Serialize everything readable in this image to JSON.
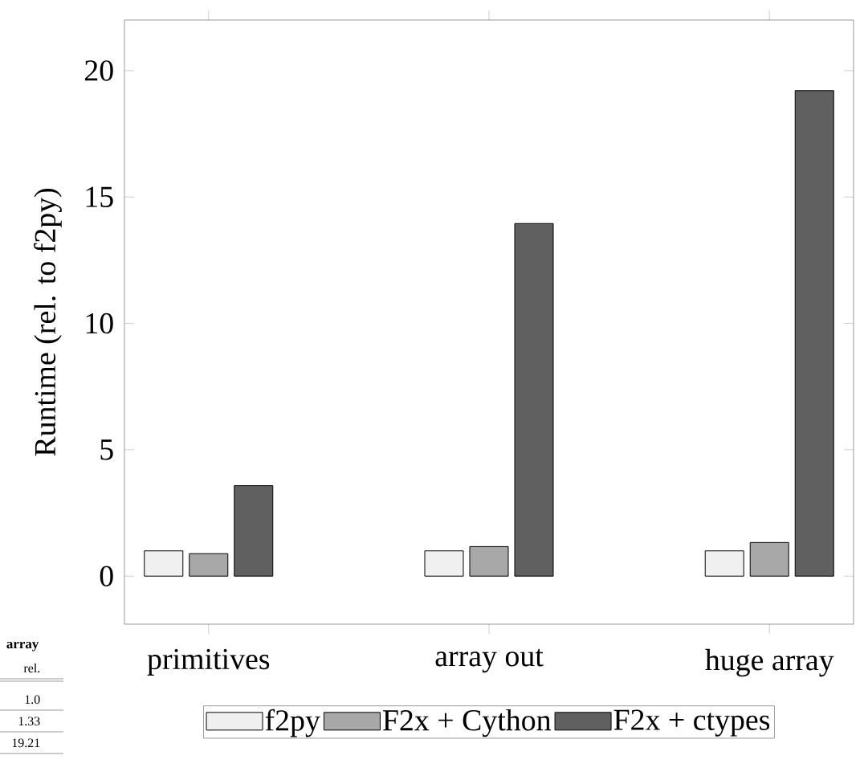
{
  "chart_data": {
    "type": "bar",
    "ylabel": "Runtime (rel. to f2py)",
    "categories": [
      "primitives",
      "array out",
      "huge array"
    ],
    "series": [
      {
        "name": "f2py",
        "color": "#f0f0f0",
        "values": [
          1.0,
          1.0,
          1.0
        ]
      },
      {
        "name": "F2x + Cython",
        "color": "#a8a8a8",
        "values": [
          0.89,
          1.17,
          1.33
        ]
      },
      {
        "name": "F2x + ctypes",
        "color": "#606060",
        "values": [
          3.58,
          13.95,
          19.21
        ]
      }
    ],
    "ylim": [
      -1.9,
      22
    ],
    "yticks": [
      0,
      5,
      10,
      15,
      20
    ],
    "grid": false,
    "legend": "bottom",
    "annotations": [
      "array",
      "rel.",
      "1.0",
      "1.33",
      "19.21"
    ]
  }
}
